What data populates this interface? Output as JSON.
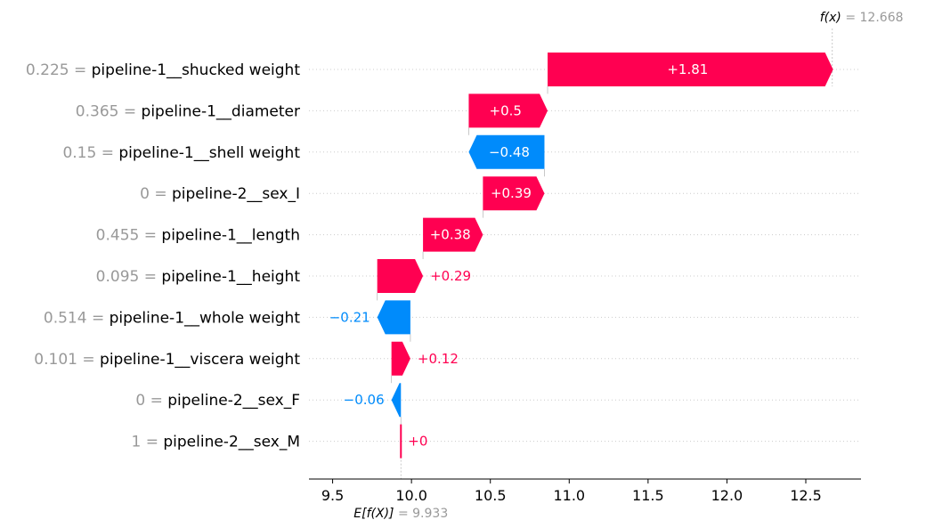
{
  "chart_data": {
    "type": "waterfall",
    "colors": {
      "positive": "#ff0051",
      "negative": "#008bfb",
      "value_gray": "#999999",
      "label": "#000000"
    },
    "base_value": 9.933,
    "base_label": "E[f(X)]",
    "base_text": "= 9.933",
    "output_value": 12.668,
    "output_label": "f(x)",
    "output_text": "= 12.668",
    "xlim": [
      9.35,
      12.85
    ],
    "xticks": [
      9.5,
      10.0,
      10.5,
      11.0,
      11.5,
      12.0,
      12.5
    ],
    "xtick_labels": [
      "9.5",
      "10.0",
      "10.5",
      "11.0",
      "11.5",
      "12.0",
      "12.5"
    ],
    "features": [
      {
        "value": "0.225",
        "name": "pipeline-1__shucked weight",
        "contribution": 1.81,
        "label": "+1.81"
      },
      {
        "value": "0.365",
        "name": "pipeline-1__diameter",
        "contribution": 0.5,
        "label": "+0.5"
      },
      {
        "value": "0.15",
        "name": "pipeline-1__shell weight",
        "contribution": -0.48,
        "label": "−0.48"
      },
      {
        "value": "0",
        "name": "pipeline-2__sex_I",
        "contribution": 0.39,
        "label": "+0.39"
      },
      {
        "value": "0.455",
        "name": "pipeline-1__length",
        "contribution": 0.38,
        "label": "+0.38"
      },
      {
        "value": "0.095",
        "name": "pipeline-1__height",
        "contribution": 0.29,
        "label": "+0.29"
      },
      {
        "value": "0.514",
        "name": "pipeline-1__whole weight",
        "contribution": -0.21,
        "label": "−0.21"
      },
      {
        "value": "0.101",
        "name": "pipeline-1__viscera weight",
        "contribution": 0.12,
        "label": "+0.12"
      },
      {
        "value": "0",
        "name": "pipeline-2__sex_F",
        "contribution": -0.06,
        "label": "−0.06"
      },
      {
        "value": "1",
        "name": "pipeline-2__sex_M",
        "contribution": 0.0,
        "label": "+0"
      }
    ]
  }
}
